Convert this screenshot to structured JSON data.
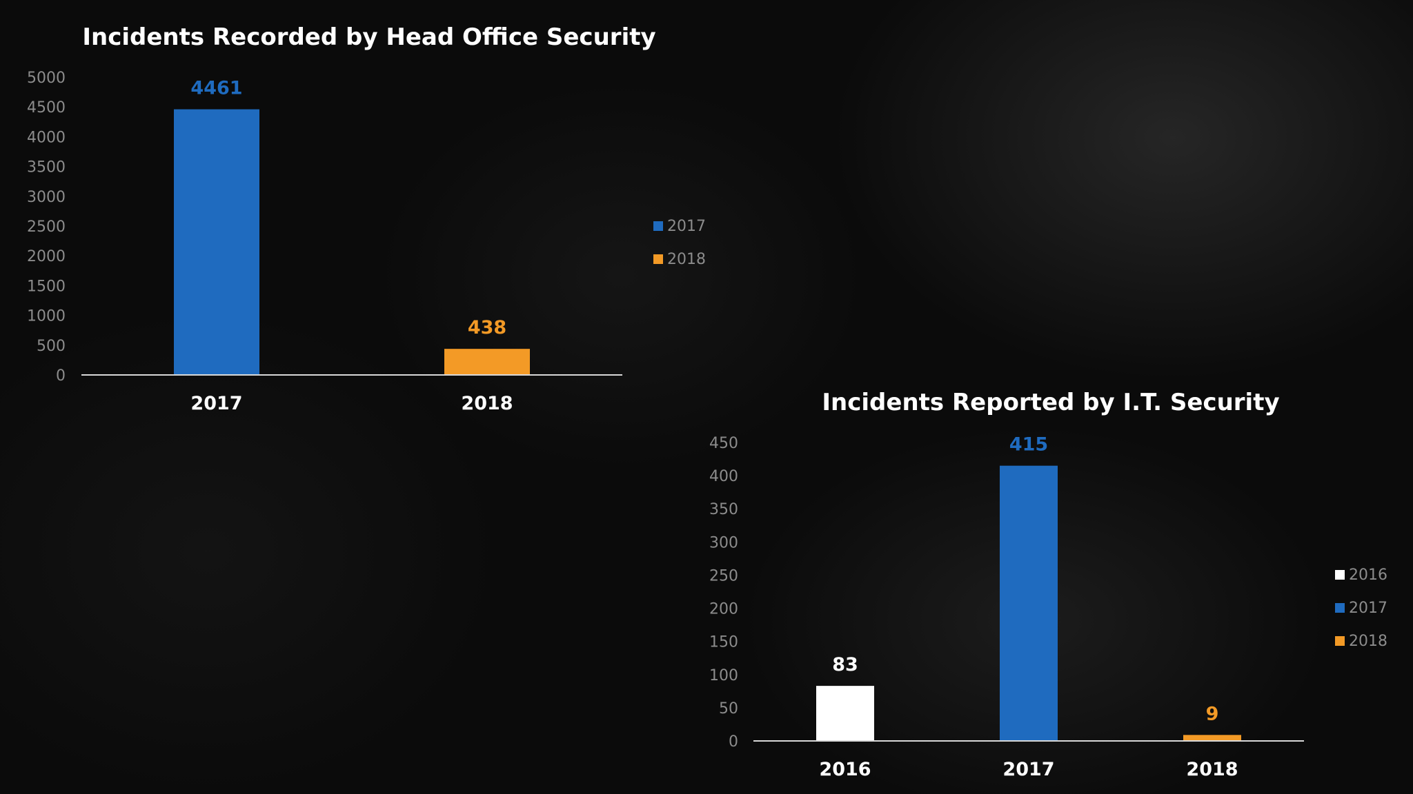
{
  "chart_data": [
    {
      "type": "bar",
      "title": "Incidents Recorded by Head Office Security",
      "categories": [
        "2017",
        "2018"
      ],
      "values": [
        4461,
        438
      ],
      "colors": [
        "#1f6bbf",
        "#f39a26"
      ],
      "data_label_colors": [
        "#1f6bbf",
        "#f39a26"
      ],
      "ylim": [
        0,
        5000
      ],
      "yticks": [
        "0",
        "500",
        "1000",
        "1500",
        "2000",
        "2500",
        "3000",
        "3500",
        "4000",
        "4500",
        "5000"
      ],
      "grid": false,
      "legend_position": "right",
      "legend": [
        {
          "label": "2017",
          "color": "#1f6bbf"
        },
        {
          "label": "2018",
          "color": "#f39a26"
        }
      ]
    },
    {
      "type": "bar",
      "title": "Incidents Reported by I.T. Security",
      "categories": [
        "2016",
        "2017",
        "2018"
      ],
      "values": [
        83,
        415,
        9
      ],
      "colors": [
        "#ffffff",
        "#1f6bbf",
        "#f39a26"
      ],
      "data_label_colors": [
        "#ffffff",
        "#1f6bbf",
        "#f39a26"
      ],
      "ylim": [
        0,
        450
      ],
      "yticks": [
        "0",
        "50",
        "100",
        "150",
        "200",
        "250",
        "300",
        "350",
        "400",
        "450"
      ],
      "grid": false,
      "legend_position": "right",
      "legend": [
        {
          "label": "2016",
          "color": "#ffffff"
        },
        {
          "label": "2017",
          "color": "#1f6bbf"
        },
        {
          "label": "2018",
          "color": "#f39a26"
        }
      ]
    }
  ]
}
